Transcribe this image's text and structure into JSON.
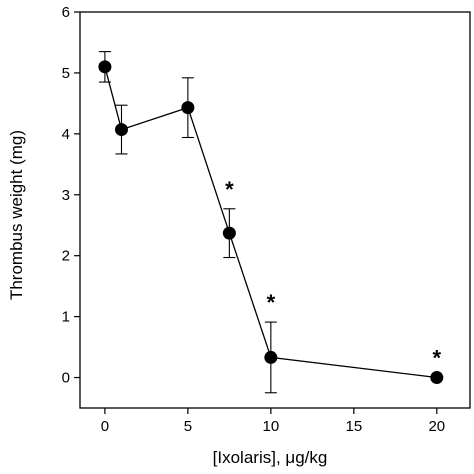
{
  "chart_data": {
    "type": "scatter",
    "title": "",
    "xlabel": "[Ixolaris], μg/kg",
    "ylabel": "Thrombus weight (mg)",
    "xlim": [
      -1.5,
      22
    ],
    "ylim": [
      -0.5,
      6
    ],
    "x_ticks": [
      0,
      5,
      10,
      15,
      20
    ],
    "x_tick_labels": [
      "0",
      "5",
      "10",
      "15",
      "20"
    ],
    "y_ticks": [
      0,
      1,
      2,
      3,
      4,
      5,
      6
    ],
    "y_tick_labels": [
      "0",
      "1",
      "2",
      "3",
      "4",
      "5",
      "6"
    ],
    "grid": false,
    "legend": "none",
    "series": [
      {
        "points": [
          {
            "x": 0,
            "y": 5.1,
            "err": 0.25
          },
          {
            "x": 1,
            "y": 4.07,
            "err": 0.4
          },
          {
            "x": 5,
            "y": 4.43,
            "err": 0.49
          },
          {
            "x": 7.5,
            "y": 2.37,
            "err": 0.4
          },
          {
            "x": 10,
            "y": 0.33,
            "err": 0.58
          },
          {
            "x": 20,
            "y": 0.0,
            "err": 0.0
          }
        ]
      }
    ],
    "annotations": [
      {
        "text": "*",
        "x": 7.5
      },
      {
        "text": "*",
        "x": 10
      },
      {
        "text": "*",
        "x": 20
      }
    ],
    "colors": {
      "marker": "#000000",
      "line": "#000000",
      "axis": "#000000"
    }
  }
}
